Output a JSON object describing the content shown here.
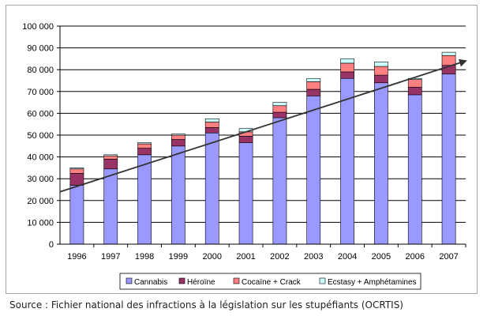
{
  "source_text": "Source : Fichier national des infractions à la législation sur les stupéfiants (OCRTIS)",
  "chart_data": {
    "type": "bar",
    "stacked": true,
    "categories": [
      "1996",
      "1997",
      "1998",
      "1999",
      "2000",
      "2001",
      "2002",
      "2003",
      "2004",
      "2005",
      "2006",
      "2007"
    ],
    "y_ticks": [
      "0",
      "10 000",
      "20 000",
      "30 000",
      "40 000",
      "50 000",
      "60 000",
      "70 000",
      "80 000",
      "90 000",
      "100 000"
    ],
    "ylim": [
      0,
      100000
    ],
    "grid": true,
    "legend_position": "bottom",
    "series": [
      {
        "name": "Cannabis",
        "color": "#9999ff",
        "values": [
          27000,
          34500,
          41000,
          45000,
          51000,
          46500,
          58000,
          68000,
          76000,
          74000,
          68500,
          78000
        ]
      },
      {
        "name": "Héroïne",
        "color": "#993366",
        "values": [
          5500,
          4500,
          3000,
          3000,
          2500,
          3000,
          2500,
          3000,
          3000,
          3500,
          3500,
          4000
        ]
      },
      {
        "name": "Cocaïne + Crack",
        "color": "#ff8080",
        "values": [
          2000,
          1500,
          2000,
          2000,
          2500,
          2000,
          3000,
          3500,
          4000,
          4000,
          3500,
          4500
        ]
      },
      {
        "name": "Ecstasy + Amphétamines",
        "color": "#ccffff",
        "values": [
          500,
          500,
          500,
          500,
          1500,
          1500,
          1500,
          1500,
          2000,
          2000,
          500,
          1500
        ]
      }
    ],
    "trend_arrow": {
      "from": [
        "1996",
        24000
      ],
      "to": [
        "2007",
        84000
      ],
      "color": "#333333"
    }
  }
}
